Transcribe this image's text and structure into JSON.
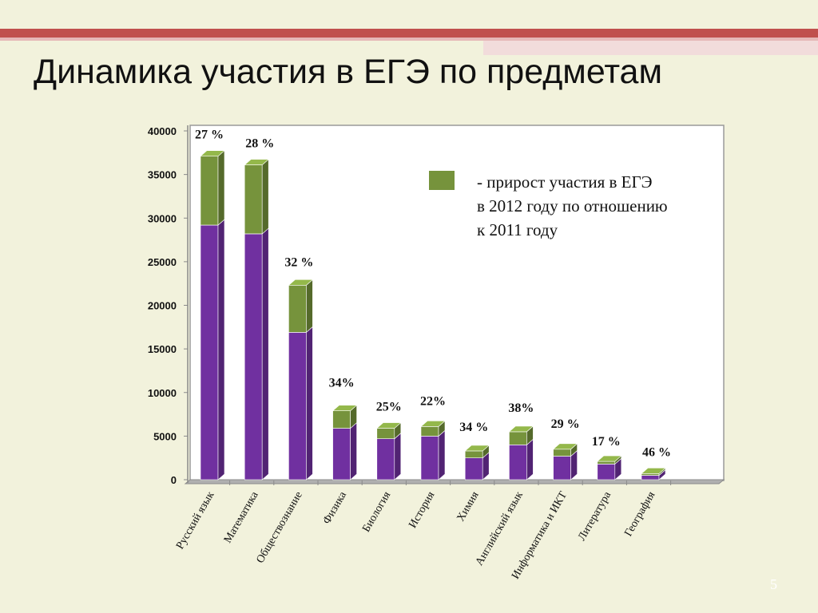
{
  "title": "Динамика участия в ЕГЭ по предметам",
  "page_number": "5",
  "colors": {
    "background": "#f2f2dc",
    "base_series": "#7030a0",
    "growth_series": "#76933c",
    "accent_stripe": "#c0504d"
  },
  "legend": {
    "line1": "- прирост участия в ЕГЭ",
    "line2": "в 2012 году по отношению",
    "line3": "к 2011 году"
  },
  "chart_data": {
    "type": "bar",
    "stacked": true,
    "categories": [
      "Русский язык",
      "Математика",
      "Обществознание",
      "Физика",
      "Биология",
      "История",
      "Химия",
      "Английский язык",
      "Информатика и ИКТ",
      "Литература",
      "География"
    ],
    "series": [
      {
        "values": [
          29200,
          28200,
          16900,
          5900,
          4700,
          5000,
          2500,
          4000,
          2700,
          1800,
          500
        ]
      },
      {
        "name": "- прирост участия в ЕГЭ в 2012 году по отношению к 2011 году",
        "values": [
          7900,
          7900,
          5400,
          2000,
          1200,
          1100,
          800,
          1500,
          800,
          300,
          200
        ]
      }
    ],
    "data_labels": [
      "27 %",
      "28 %",
      "32 %",
      "34%",
      "25%",
      "22%",
      "34 %",
      "38%",
      "29 %",
      "17 %",
      "46 %"
    ],
    "y_ticks": [
      0,
      5000,
      10000,
      15000,
      20000,
      25000,
      30000,
      35000,
      40000
    ],
    "ylim": [
      0,
      40000
    ],
    "grid": false,
    "legend_position": "top-right"
  }
}
